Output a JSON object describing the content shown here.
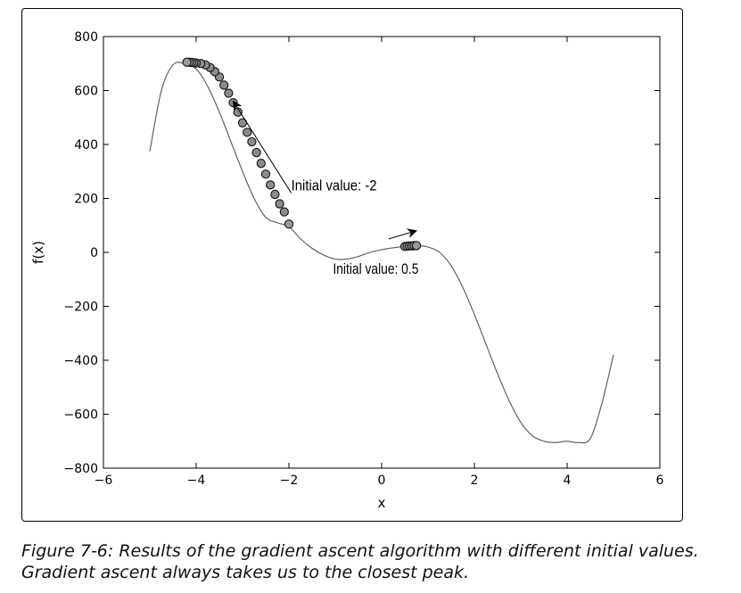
{
  "chart_data": {
    "type": "line",
    "xlabel": "x",
    "ylabel": "f(x)",
    "xlim": [
      -6,
      6
    ],
    "ylim": [
      -800,
      800
    ],
    "xticks": [
      -6,
      -4,
      -2,
      0,
      2,
      4,
      6
    ],
    "yticks": [
      -800,
      -600,
      -400,
      -200,
      0,
      200,
      400,
      600,
      800
    ],
    "grid": false,
    "curve": {
      "x": [
        -5.0,
        -4.75,
        -4.5,
        -4.25,
        -4.0,
        -3.75,
        -3.5,
        -3.25,
        -3.0,
        -2.75,
        -2.5,
        -2.25,
        -2.0,
        -1.75,
        -1.5,
        -1.25,
        -1.0,
        -0.75,
        -0.5,
        -0.25,
        0.0,
        0.25,
        0.5,
        0.75,
        1.0,
        1.25,
        1.5,
        1.75,
        2.0,
        2.25,
        2.5,
        2.75,
        3.0,
        3.25,
        3.5,
        3.75,
        4.0,
        4.25,
        4.5,
        4.75,
        5.0
      ],
      "y": [
        375,
        600,
        695,
        700,
        680,
        615,
        520,
        410,
        300,
        200,
        130,
        110,
        95,
        50,
        15,
        -10,
        -25,
        -25,
        -15,
        0,
        10,
        17,
        22,
        25,
        20,
        0,
        -50,
        -130,
        -230,
        -340,
        -450,
        -550,
        -630,
        -680,
        -700,
        -705,
        -700,
        -705,
        -690,
        -560,
        -380
      ]
    },
    "runs": [
      {
        "x": [
          -2.0,
          -2.1,
          -2.2,
          -2.3,
          -2.4,
          -2.5,
          -2.6,
          -2.7,
          -2.8,
          -2.9,
          -3.0,
          -3.1,
          -3.2,
          -3.3,
          -3.4,
          -3.5,
          -3.6,
          -3.7,
          -3.8,
          -3.9,
          -4.0,
          -4.05,
          -4.1,
          -4.15,
          -4.2
        ],
        "y": [
          105,
          150,
          180,
          215,
          250,
          290,
          330,
          370,
          410,
          445,
          480,
          520,
          555,
          590,
          620,
          650,
          670,
          685,
          695,
          700,
          702,
          703,
          704,
          705,
          705
        ]
      },
      {
        "x": [
          0.5,
          0.55,
          0.6,
          0.65,
          0.7,
          0.75
        ],
        "y": [
          22,
          23,
          24,
          24,
          25,
          25
        ]
      }
    ],
    "annotations": [
      {
        "text": "Initial value: -2",
        "x": -1.95,
        "y": 230,
        "arrow_from": [
          -1.95,
          220
        ],
        "arrow_to": [
          -3.2,
          560
        ]
      },
      {
        "text": "Initial value: 0.5",
        "x": -1.05,
        "y": -80,
        "arrow_from": [
          0.15,
          50
        ],
        "arrow_to": [
          0.75,
          80
        ]
      }
    ]
  },
  "caption": {
    "line1": "Figure 7-6: Results of the gradient ascent algorithm with different initial values.",
    "line2": "Gradient ascent always takes us to the closest peak."
  }
}
